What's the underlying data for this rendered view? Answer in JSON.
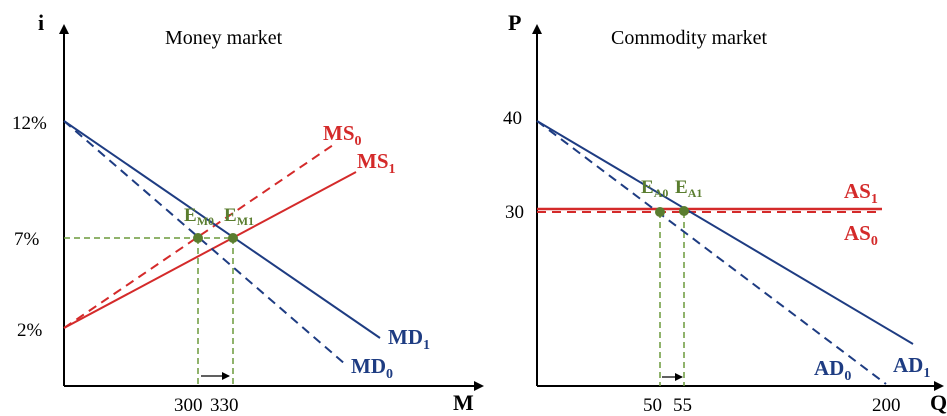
{
  "colors": {
    "red": "#d42a2a",
    "blue": "#1e3c82",
    "green": "#6c9a3c",
    "point": "#5a7d2f",
    "black": "#000000"
  },
  "money": {
    "title": "Money market",
    "y_axis": "i",
    "x_axis": "M",
    "y_ticks": [
      "12%",
      "7%",
      "2%"
    ],
    "x_ticks": [
      "300",
      "330"
    ],
    "MS0": {
      "main": "MS",
      "sub": "0"
    },
    "MS1": {
      "main": "MS",
      "sub": "1"
    },
    "MD1": {
      "main": "MD",
      "sub": "1"
    },
    "MD0": {
      "main": "MD",
      "sub": "0"
    },
    "EM0": {
      "main": "E",
      "sub": "M0"
    },
    "EM1": {
      "main": "E",
      "sub": "M1"
    }
  },
  "commodity": {
    "title": "Commodity market",
    "y_axis": "P",
    "x_axis": "Q",
    "y_ticks": [
      "40",
      "30"
    ],
    "x_ticks": [
      "50",
      "55",
      "200"
    ],
    "AS1": {
      "main": "AS",
      "sub": "1"
    },
    "AS0": {
      "main": "AS",
      "sub": "0"
    },
    "AD0": {
      "main": "AD",
      "sub": "0"
    },
    "AD1": {
      "main": "AD",
      "sub": "1"
    },
    "EA0": {
      "main": "E",
      "sub": "A0"
    },
    "EA1": {
      "main": "E",
      "sub": "A1"
    }
  }
}
